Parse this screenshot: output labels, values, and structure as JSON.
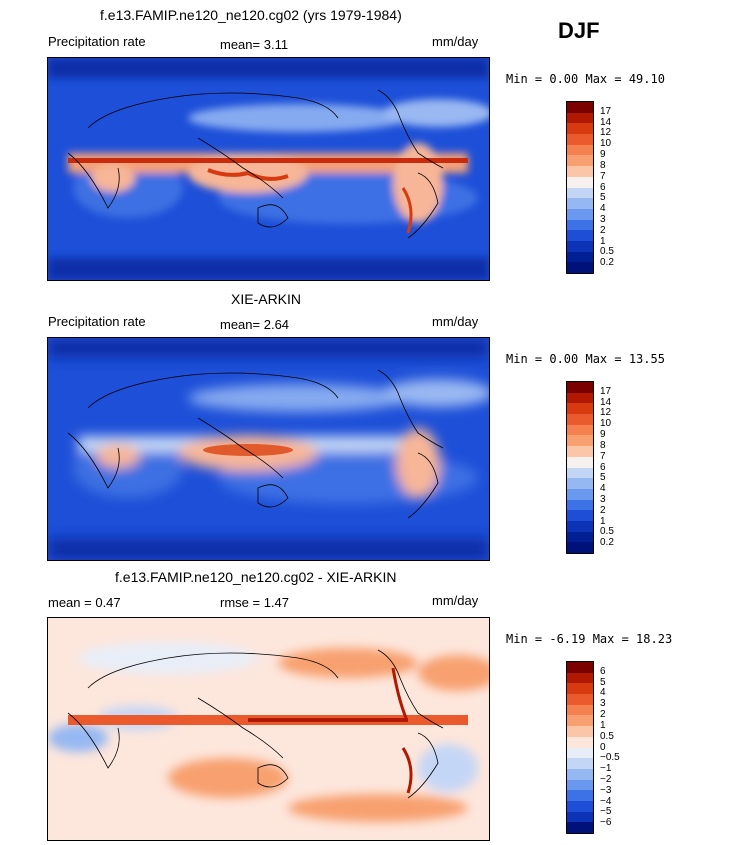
{
  "season": "DJF",
  "panels": [
    {
      "title": "f.e13.FAMIP.ne120_ne120.cg02 (yrs 1979-1984)",
      "left_label": "Precipitation rate",
      "stat1": "mean=   3.11",
      "units": "mm/day",
      "minmax": "Min =   0.00 Max =  49.10",
      "palette": "precip"
    },
    {
      "title": "XIE-ARKIN",
      "left_label": "Precipitation rate",
      "stat1": "mean=   2.64",
      "units": "mm/day",
      "minmax": "Min =   0.00 Max =  13.55",
      "palette": "precip"
    },
    {
      "title": "f.e13.FAMIP.ne120_ne120.cg02 - XIE-ARKIN",
      "left_label": "mean =   0.47",
      "stat1": "rmse =   1.47",
      "units": "mm/day",
      "minmax": "Min =  -6.19 Max =  18.23",
      "palette": "diff"
    }
  ],
  "colorbars": {
    "precip": {
      "colors": [
        "#7a0000",
        "#b01800",
        "#d83a10",
        "#ea5a2c",
        "#f58050",
        "#f8a070",
        "#fbc6a8",
        "#f6f0ee",
        "#c4d6f6",
        "#96b8f2",
        "#6a98ee",
        "#3c72e6",
        "#1e4ed6",
        "#0c32b6",
        "#001f92",
        "#00127a"
      ],
      "ticks": [
        "17",
        "14",
        "12",
        "10",
        "9",
        "8",
        "7",
        "6",
        "5",
        "4",
        "3",
        "2",
        "1",
        "0.5",
        "0.2"
      ]
    },
    "diff": {
      "colors": [
        "#7a0000",
        "#b01800",
        "#d83a10",
        "#ea5a2c",
        "#f58050",
        "#f8a070",
        "#fbc6a8",
        "#fde6dc",
        "#e8eef8",
        "#c4d6f6",
        "#96b8f2",
        "#6a98ee",
        "#3c72e6",
        "#1e4ed6",
        "#0c32b6",
        "#00127a"
      ],
      "ticks": [
        "6",
        "5",
        "4",
        "3",
        "2",
        "1",
        "0.5",
        "0",
        "−0.5",
        "−1",
        "−2",
        "−3",
        "−4",
        "−5",
        "−6"
      ]
    }
  },
  "chart_data": [
    {
      "type": "heatmap",
      "title": "f.e13.FAMIP.ne120_ne120.cg02 (yrs 1979-1984)",
      "variable": "Precipitation rate",
      "units": "mm/day",
      "season": "DJF",
      "mean": 3.11,
      "min": 0.0,
      "max": 49.1,
      "levels": [
        0.2,
        0.5,
        1,
        2,
        3,
        4,
        5,
        6,
        7,
        8,
        9,
        10,
        12,
        14,
        17
      ],
      "projection": "global map (cylindrical equidistant)"
    },
    {
      "type": "heatmap",
      "title": "XIE-ARKIN",
      "variable": "Precipitation rate",
      "units": "mm/day",
      "season": "DJF",
      "mean": 2.64,
      "min": 0.0,
      "max": 13.55,
      "levels": [
        0.2,
        0.5,
        1,
        2,
        3,
        4,
        5,
        6,
        7,
        8,
        9,
        10,
        12,
        14,
        17
      ],
      "projection": "global map (cylindrical equidistant)"
    },
    {
      "type": "heatmap",
      "title": "f.e13.FAMIP.ne120_ne120.cg02 - XIE-ARKIN",
      "units": "mm/day",
      "season": "DJF",
      "mean": 0.47,
      "rmse": 1.47,
      "min": -6.19,
      "max": 18.23,
      "levels": [
        -6,
        -5,
        -4,
        -3,
        -2,
        -1,
        -0.5,
        0,
        0.5,
        1,
        2,
        3,
        4,
        5,
        6
      ],
      "projection": "global map (cylindrical equidistant)"
    }
  ]
}
